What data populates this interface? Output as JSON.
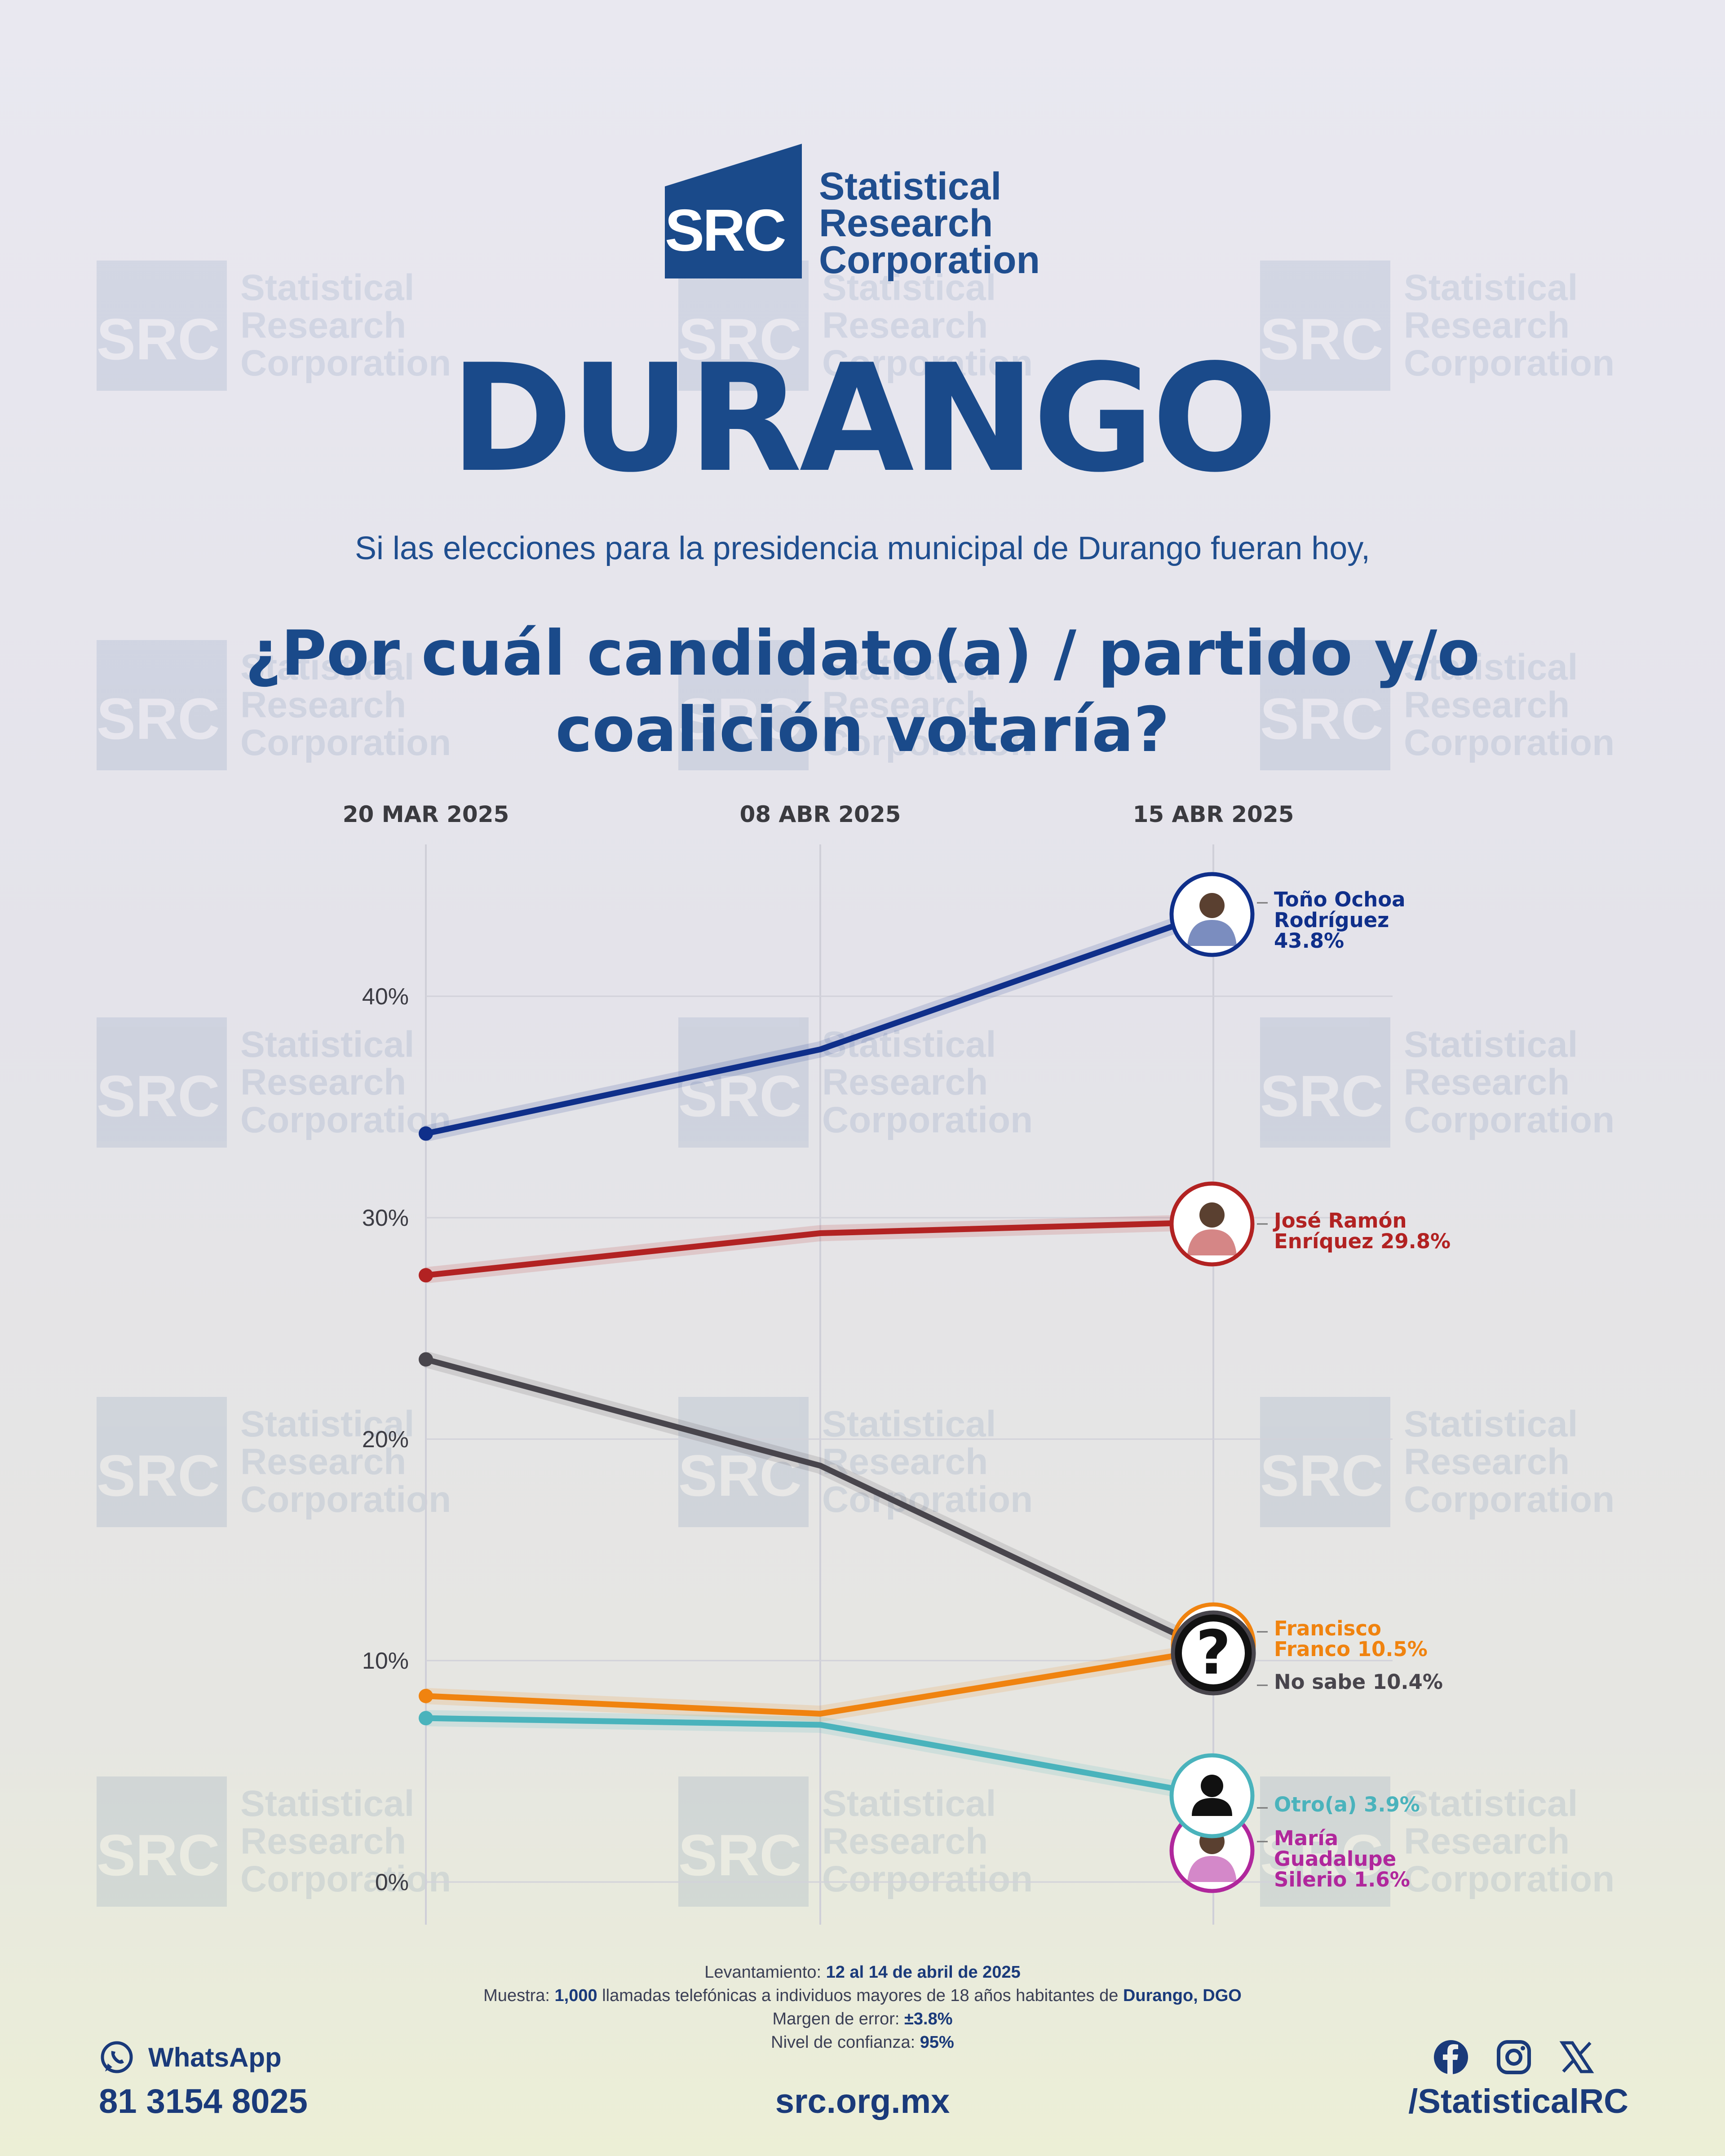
{
  "brand": {
    "mark": "SRC",
    "name_lines": [
      "Statistical",
      "Research",
      "Corporation"
    ],
    "color": "#1a4a8a"
  },
  "title": "DURANGO",
  "subtitle": "Si las elecciones para la presidencia municipal de Durango fueran hoy,",
  "question": "¿Por cuál candidato(a) / partido y/o coalición votaría?",
  "chart_data": {
    "type": "line",
    "x": [
      "20 MAR 2025",
      "08 ABR 2025",
      "15 ABR 2025"
    ],
    "ylim": [
      0,
      46
    ],
    "yticks": [
      0,
      10,
      20,
      30,
      40
    ],
    "ytick_labels": [
      "0%",
      "10%",
      "20%",
      "30%",
      "40%"
    ],
    "grid": true,
    "series": [
      {
        "name": "Toño Ochoa Rodríguez",
        "values": [
          33.8,
          37.6,
          43.8
        ],
        "color": "#0f2f8a",
        "label": "Toño Ochoa Rodríguez 43.8%",
        "label_lines": [
          "Toño Ochoa",
          "Rodríguez",
          "43.8%"
        ],
        "icon": "person-photo-icon"
      },
      {
        "name": "José Ramón Enríquez",
        "values": [
          27.4,
          29.3,
          29.8
        ],
        "color": "#b22222",
        "label": "José Ramón Enríquez 29.8%",
        "label_lines": [
          "José Ramón",
          "Enríquez 29.8%"
        ],
        "icon": "person-photo-icon"
      },
      {
        "name": "No sabe",
        "values": [
          23.6,
          18.8,
          10.4
        ],
        "color": "#48454c",
        "label": "No sabe 10.4%",
        "label_lines": [
          "No sabe 10.4%"
        ],
        "icon": "question-mark-icon"
      },
      {
        "name": "Francisco Franco",
        "values": [
          8.4,
          7.6,
          10.5
        ],
        "color": "#f0830f",
        "label": "Francisco Franco 10.5%",
        "label_lines": [
          "Francisco",
          "Franco 10.5%"
        ],
        "icon": "person-photo-icon"
      },
      {
        "name": "Otro(a)",
        "values": [
          7.4,
          7.1,
          3.9
        ],
        "color": "#4ab3bc",
        "label": "Otro(a) 3.9%",
        "label_lines": [
          "Otro(a) 3.9%"
        ],
        "icon": "person-silhouette-icon"
      },
      {
        "name": "María Guadalupe Silerio",
        "values": [
          null,
          null,
          1.6
        ],
        "color": "#b0279c",
        "label": "María Guadalupe Silerio 1.6%",
        "label_lines": [
          "María",
          "Guadalupe",
          "Silerio 1.6%"
        ],
        "icon": "person-photo-icon"
      }
    ]
  },
  "methodology": {
    "survey_label": "Levantamiento:",
    "survey_value": "12 al 14 de abril de 2025",
    "sample_label": "Muestra:",
    "sample_count": "1,000",
    "sample_text": "llamadas telefónicas a individuos mayores de 18 años habitantes de",
    "sample_place": "Durango, DGO",
    "margin_label": "Margen de error:",
    "margin_value": "±3.8%",
    "confidence_label": "Nivel de confianza:",
    "confidence_value": "95%"
  },
  "contact": {
    "whatsapp_label": "WhatsApp",
    "phone": "81 3154 8025",
    "website": "src.org.mx",
    "handle": "/StatisticalRC"
  }
}
